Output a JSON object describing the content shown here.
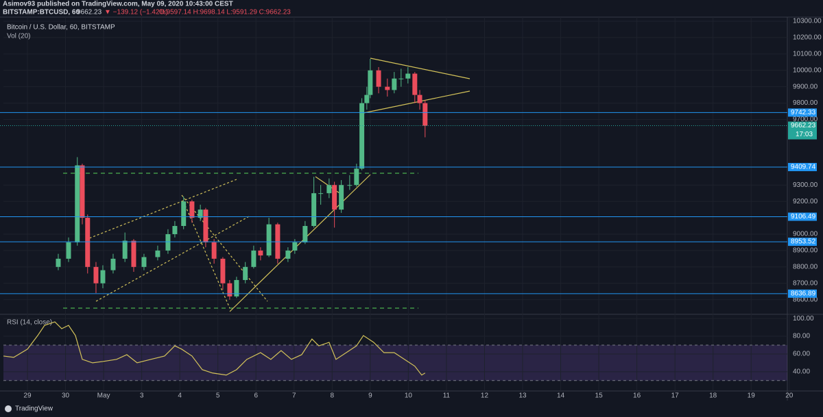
{
  "header": {
    "author": "Asimov93 published on TradingView.com, May 09, 2020 10:43:00 CEST",
    "symbol": "BITSTAMP:BTCUSD, 60",
    "last": "9662.23",
    "change": "▼ −139.12 (−1.42%)",
    "ohlc": "O:9597.14 H:9698.14 L:9591.29 C:9662.23"
  },
  "footer": {
    "brand": "TradingView"
  },
  "chart_data": [
    {
      "type": "candlestick",
      "title": "Bitcoin / U.S. Dollar, 60, BITSTAMP",
      "subtitle": "Vol (20)",
      "up_color": "#53b987",
      "down_color": "#eb4d5c",
      "xlim": [
        -0.63,
        19.95
      ],
      "x": [
        0.81,
        1.08,
        1.31,
        1.44,
        1.58,
        1.8,
        1.98,
        2.25,
        2.56,
        2.79,
        3.06,
        3.42,
        3.69,
        3.87,
        4.1,
        4.32,
        4.54,
        4.68,
        4.9,
        5.13,
        5.31,
        5.49,
        5.72,
        5.94,
        6.12,
        6.34,
        6.57,
        6.84,
        7.02,
        7.29,
        7.52,
        7.7,
        7.92,
        8.06,
        8.24,
        8.46,
        8.64,
        8.78,
        8.91,
        9.0,
        9.22,
        9.45,
        9.63,
        9.81,
        9.99,
        10.17,
        10.3,
        10.44
      ],
      "open": [
        8800,
        8850,
        8950,
        9420,
        9100,
        8800,
        8700,
        8780,
        8850,
        8960,
        8800,
        8860,
        8900,
        9000,
        9050,
        9200,
        9100,
        9150,
        8950,
        8850,
        8700,
        8620,
        8720,
        8800,
        8900,
        8870,
        9060,
        8850,
        8900,
        8950,
        9050,
        9250,
        9250,
        9300,
        9150,
        9300,
        9300,
        9400,
        9800,
        9850,
        10000,
        9900,
        9880,
        9950,
        9950,
        9980,
        9850,
        9800
      ],
      "high": [
        8880,
        8980,
        9470,
        9430,
        9120,
        8830,
        8810,
        8880,
        9010,
        8970,
        8880,
        8930,
        9030,
        9080,
        9230,
        9210,
        9180,
        9160,
        8970,
        8860,
        8720,
        8740,
        8830,
        8930,
        8920,
        9100,
        9070,
        8920,
        8970,
        9080,
        9350,
        9300,
        9340,
        9320,
        9330,
        9360,
        9430,
        9830,
        9900,
        10070,
        10020,
        9950,
        9990,
        10010,
        10020,
        9990,
        9880,
        9820
      ],
      "low": [
        8780,
        8830,
        8930,
        9060,
        8760,
        8640,
        8670,
        8760,
        8830,
        8770,
        8780,
        8840,
        8880,
        8980,
        9030,
        9070,
        9080,
        8920,
        8820,
        8660,
        8600,
        8610,
        8700,
        8790,
        8840,
        8860,
        8820,
        8830,
        8880,
        8940,
        9040,
        9180,
        9220,
        9040,
        9130,
        9270,
        9290,
        9390,
        9760,
        9830,
        9860,
        9840,
        9860,
        9900,
        9920,
        9800,
        9760,
        9591.29
      ],
      "close": [
        8850,
        8950,
        9420,
        9100,
        8800,
        8700,
        8780,
        8850,
        8960,
        8800,
        8860,
        8900,
        9000,
        9050,
        9200,
        9100,
        9150,
        8950,
        8850,
        8700,
        8620,
        8720,
        8800,
        8900,
        8870,
        9060,
        8850,
        8900,
        8950,
        9050,
        9250,
        9250,
        9300,
        9150,
        9300,
        9300,
        9400,
        9800,
        9850,
        10000,
        9900,
        9880,
        9950,
        9950,
        9980,
        9850,
        9800,
        9662.23
      ],
      "ylim": [
        8515,
        10325
      ],
      "yticks": [
        {
          "value": 10300,
          "label": "10300.00"
        },
        {
          "value": 10200,
          "label": "10200.00"
        },
        {
          "value": 10100,
          "label": "10100.00"
        },
        {
          "value": 10000,
          "label": "10000.00"
        },
        {
          "value": 9900,
          "label": "9900.00"
        },
        {
          "value": 9800,
          "label": "9800.00"
        },
        {
          "value": 9700,
          "label": "9700.00"
        },
        {
          "value": 9300,
          "label": "9300.00"
        },
        {
          "value": 9200,
          "label": "9200.00"
        },
        {
          "value": 9000,
          "label": "9000.00"
        },
        {
          "value": 8900,
          "label": "8900.00"
        },
        {
          "value": 8800,
          "label": "8800.00"
        },
        {
          "value": 8700,
          "label": "8700.00"
        },
        {
          "value": 8600,
          "label": "8600.00"
        }
      ],
      "grid": true,
      "levels": [
        9742.33,
        9409.74,
        9106.49,
        8953.52,
        8636.89
      ],
      "level_color": "#2196f3",
      "last_price": 9662.23,
      "last_color": "#26a69a",
      "countdown": "17:03"
    },
    {
      "type": "line",
      "title": "RSI (14, close)",
      "color": "#d4c35a",
      "xlim": [
        -0.63,
        19.95
      ],
      "x": [
        -0.63,
        -0.36,
        0,
        0.27,
        0.45,
        0.72,
        0.9,
        1.08,
        1.26,
        1.44,
        1.71,
        1.98,
        2.34,
        2.61,
        2.88,
        3.24,
        3.6,
        3.87,
        4.05,
        4.32,
        4.59,
        4.86,
        5.22,
        5.49,
        5.76,
        6.12,
        6.39,
        6.66,
        6.93,
        7.2,
        7.47,
        7.65,
        7.92,
        8.1,
        8.37,
        8.64,
        8.82,
        9.09,
        9.36,
        9.63,
        9.9,
        10.17,
        10.35,
        10.44
      ],
      "values": [
        57.7,
        56.2,
        65.4,
        80.8,
        92.3,
        96.2,
        88.5,
        92.3,
        80.8,
        53.9,
        50,
        51.5,
        53.9,
        59.2,
        50,
        53.9,
        57.7,
        69.2,
        65.4,
        57.7,
        42.3,
        38.5,
        36.2,
        42.3,
        53.9,
        61.5,
        53.9,
        63.8,
        53.9,
        59.2,
        76.9,
        69.2,
        73.1,
        53.9,
        61.5,
        69.2,
        80.8,
        73.1,
        61.5,
        61.5,
        53.9,
        46.2,
        36.2,
        38.5
      ],
      "ylim": [
        19,
        104
      ],
      "yticks": [
        {
          "value": 100,
          "label": "100.00"
        },
        {
          "value": 80,
          "label": "80.00"
        },
        {
          "value": 60,
          "label": "60.00"
        },
        {
          "value": 40,
          "label": "40.00"
        }
      ],
      "band_lines": [
        70,
        30
      ],
      "band_color": "#7e57c2",
      "xticks": [
        {
          "value": 0,
          "label": "29"
        },
        {
          "value": 1,
          "label": "30"
        },
        {
          "value": 2,
          "label": "May"
        },
        3,
        4,
        5,
        6,
        7,
        8,
        9,
        10,
        11,
        12,
        13,
        14,
        15,
        16,
        17,
        18,
        19,
        20
      ]
    }
  ]
}
